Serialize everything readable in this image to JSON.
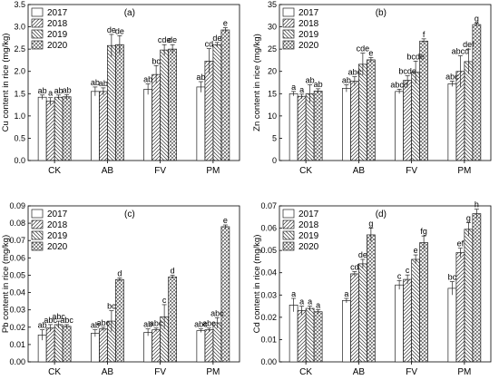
{
  "chart_data": [
    {
      "type": "bar",
      "panel": "(a)",
      "ylabel": "Cu content in rice (mg/kg)",
      "categories": [
        "CK",
        "AB",
        "FV",
        "PM"
      ],
      "ylim": [
        0,
        3.5
      ],
      "yticks": [
        "0.0",
        "0.5",
        "1.0",
        "1.5",
        "2.0",
        "2.5",
        "3.0",
        "3.5"
      ],
      "yvals": [
        0,
        0.5,
        1.0,
        1.5,
        2.0,
        2.5,
        3.0,
        3.5
      ],
      "legend": "top-left",
      "series": [
        {
          "name": "2017",
          "values": [
            1.42,
            1.55,
            1.6,
            1.65
          ],
          "errors": [
            0.05,
            0.1,
            0.12,
            0.12
          ],
          "labels": [
            "ab",
            "ab",
            "ab",
            "ab"
          ]
        },
        {
          "name": "2018",
          "values": [
            1.33,
            1.55,
            1.93,
            2.23
          ],
          "errors": [
            0.08,
            0.08,
            0.2,
            0.28
          ],
          "labels": [
            "a",
            "ab",
            "bc",
            "cd"
          ]
        },
        {
          "name": "2019",
          "values": [
            1.42,
            2.58,
            2.48,
            2.6
          ],
          "errors": [
            0.05,
            0.25,
            0.12,
            0.05
          ],
          "labels": [
            "ab",
            "de",
            "cde",
            "de"
          ]
        },
        {
          "name": "2020",
          "values": [
            1.43,
            2.6,
            2.5,
            2.93
          ],
          "errors": [
            0.05,
            0.2,
            0.1,
            0.05
          ],
          "labels": [
            "ab",
            "de",
            "de",
            "e"
          ]
        }
      ]
    },
    {
      "type": "bar",
      "panel": "(b)",
      "ylabel": "Zn content in rice (mg/kg)",
      "categories": [
        "CK",
        "AB",
        "FV",
        "PM"
      ],
      "ylim": [
        0,
        35
      ],
      "yticks": [
        "0",
        "5",
        "10",
        "15",
        "20",
        "25",
        "30",
        "35"
      ],
      "yvals": [
        0,
        5,
        10,
        15,
        20,
        25,
        30,
        35
      ],
      "legend": "top-left",
      "series": [
        {
          "name": "2017",
          "values": [
            15.0,
            16.2,
            15.5,
            17.2
          ],
          "errors": [
            0.5,
            0.8,
            0.5,
            0.6
          ],
          "labels": [
            "a",
            "ab",
            "abcd",
            "abc"
          ]
        },
        {
          "name": "2018",
          "values": [
            14.4,
            17.8,
            18.0,
            20.0
          ],
          "errors": [
            0.5,
            1.0,
            1.0,
            3.5
          ],
          "labels": [
            "a",
            "abc",
            "bcde",
            "abcd"
          ]
        },
        {
          "name": "2019",
          "values": [
            15.0,
            21.6,
            19.8,
            22.2
          ],
          "errors": [
            2.0,
            2.5,
            2.5,
            2.8
          ],
          "labels": [
            "ab",
            "cde",
            "bcde",
            "def"
          ]
        },
        {
          "name": "2020",
          "values": [
            15.6,
            22.6,
            26.8,
            30.5
          ],
          "errors": [
            0.5,
            0.5,
            0.5,
            0.3
          ],
          "labels": [
            "ab",
            "e",
            "f",
            "g"
          ]
        }
      ]
    },
    {
      "type": "bar",
      "panel": "(c)",
      "ylabel": "Pb content in rice (mg/kg)",
      "categories": [
        "CK",
        "AB",
        "FV",
        "PM"
      ],
      "ylim": [
        0,
        0.09
      ],
      "yticks": [
        "0.00",
        "0.01",
        "0.02",
        "0.03",
        "0.04",
        "0.05",
        "0.06",
        "0.07",
        "0.08",
        "0.09"
      ],
      "yvals": [
        0,
        0.01,
        0.02,
        0.03,
        0.04,
        0.05,
        0.06,
        0.07,
        0.08,
        0.09
      ],
      "legend": "top-left",
      "series": [
        {
          "name": "2017",
          "values": [
            0.0155,
            0.0165,
            0.017,
            0.018
          ],
          "errors": [
            0.003,
            0.002,
            0.002,
            0.001
          ],
          "labels": [
            "ab",
            "ab",
            "ab",
            "abc"
          ]
        },
        {
          "name": "2018",
          "values": [
            0.0195,
            0.019,
            0.0185,
            0.0185
          ],
          "errors": [
            0.002,
            0.001,
            0.001,
            0.001
          ],
          "labels": [
            "abc",
            "abc",
            "abc",
            "abc"
          ]
        },
        {
          "name": "2019",
          "values": [
            0.0215,
            0.0235,
            0.026,
            0.0225
          ],
          "errors": [
            0.002,
            0.006,
            0.007,
            0.003
          ],
          "labels": [
            "abc",
            "bc",
            "c",
            "abc"
          ]
        },
        {
          "name": "2020",
          "values": [
            0.0205,
            0.0475,
            0.049,
            0.078
          ],
          "errors": [
            0.001,
            0.001,
            0.001,
            0.001
          ],
          "labels": [
            "abc",
            "d",
            "d",
            "e"
          ]
        }
      ]
    },
    {
      "type": "bar",
      "panel": "(d)",
      "ylabel": "Cd content in rice (mg/kg)",
      "categories": [
        "CK",
        "AB",
        "FV",
        "PM"
      ],
      "ylim": [
        0,
        0.07
      ],
      "yticks": [
        "0.00",
        "0.01",
        "0.02",
        "0.03",
        "0.04",
        "0.05",
        "0.06",
        "0.07"
      ],
      "yvals": [
        0,
        0.01,
        0.02,
        0.03,
        0.04,
        0.05,
        0.06,
        0.07
      ],
      "legend": "top-left",
      "series": [
        {
          "name": "2017",
          "values": [
            0.0255,
            0.0275,
            0.0345,
            0.033
          ],
          "errors": [
            0.003,
            0.001,
            0.002,
            0.003
          ],
          "labels": [
            "a",
            "a",
            "c",
            "bc"
          ]
        },
        {
          "name": "2018",
          "values": [
            0.023,
            0.0395,
            0.037,
            0.049
          ],
          "errors": [
            0.002,
            0.001,
            0.002,
            0.002
          ],
          "labels": [
            "a",
            "cd",
            "c",
            "ef"
          ]
        },
        {
          "name": "2019",
          "values": [
            0.024,
            0.044,
            0.046,
            0.0595
          ],
          "errors": [
            0.001,
            0.002,
            0.002,
            0.003
          ],
          "labels": [
            "a",
            "de",
            "e",
            "g"
          ]
        },
        {
          "name": "2020",
          "values": [
            0.0225,
            0.057,
            0.0535,
            0.0665
          ],
          "errors": [
            0.001,
            0.003,
            0.003,
            0.002
          ],
          "labels": [
            "a",
            "g",
            "fg",
            "h"
          ]
        }
      ]
    }
  ]
}
